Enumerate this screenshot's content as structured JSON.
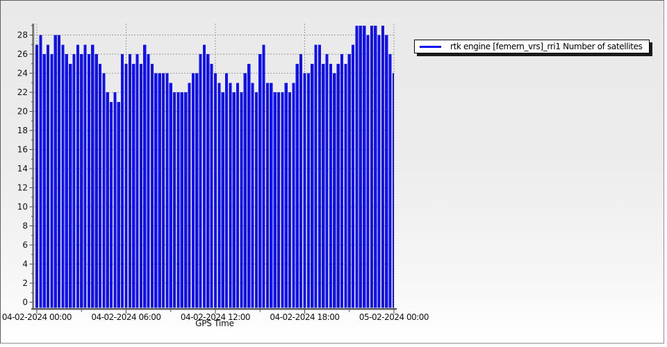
{
  "legend": {
    "label": "rtk engine [femern_vrs]_rri1 Number of satellites"
  },
  "colors": {
    "series": "#1111ef",
    "grid": "#9c9c9c",
    "axis": "#5f5f5f",
    "axis_highlight": "#b5b5b5",
    "tick": "#4a4a4a",
    "text": "#111111",
    "panel_top": "#e9e9e9",
    "panel_bottom": "#ffffff",
    "legend_shadow": "#1b1b1b"
  },
  "chart_data": {
    "type": "bar",
    "style": "dense vertical impulse bars from 0 to value, one per 15-min epoch",
    "title": "",
    "xlabel": "GPS Time",
    "ylabel": "",
    "grid": "on, dashed",
    "legend_position": "outside right-top",
    "ylim": [
      0,
      29.2
    ],
    "y_ticks": [
      0,
      2,
      4,
      6,
      8,
      10,
      12,
      14,
      16,
      18,
      20,
      22,
      24,
      26,
      28
    ],
    "x_tick_labels": [
      "04-02-2024 00:00",
      "04-02-2024 06:00",
      "04-02-2024 12:00",
      "04-02-2024 18:00",
      "05-02-2024 00:00"
    ],
    "x_tick_hours": [
      0,
      6,
      12,
      18,
      24
    ],
    "x_minor_tick_hours": [
      3,
      9,
      15,
      21
    ],
    "x_unit": "hours since 04-02-2024 00:00",
    "series": [
      {
        "name": "rtk engine [femern_vrs]_rri1 Number of satellites",
        "color": "#1111ef",
        "t_start_hours": -0.25,
        "t_step_hours": 0.25,
        "values": [
          26,
          27,
          28,
          26,
          27,
          26,
          28,
          28,
          27,
          26,
          25,
          26,
          27,
          26,
          27,
          26,
          27,
          26,
          25,
          24,
          22,
          21,
          22,
          21,
          26,
          25,
          26,
          25,
          26,
          25,
          27,
          26,
          25,
          24,
          24,
          24,
          24,
          23,
          22,
          22,
          22,
          22,
          23,
          24,
          24,
          26,
          27,
          26,
          25,
          24,
          23,
          22,
          24,
          23,
          22,
          23,
          22,
          24,
          25,
          23,
          22,
          26,
          27,
          23,
          23,
          22,
          22,
          22,
          23,
          22,
          23,
          25,
          26,
          24,
          24,
          25,
          27,
          27,
          25,
          26,
          25,
          24,
          25,
          26,
          25,
          26,
          27,
          29,
          29,
          29,
          28,
          29,
          29,
          28,
          29,
          28,
          26,
          24
        ]
      }
    ]
  }
}
